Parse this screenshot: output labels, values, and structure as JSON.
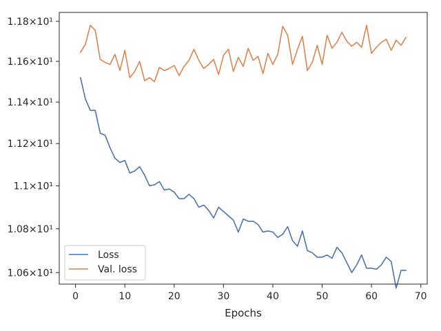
{
  "chart_data": {
    "type": "line",
    "xlabel": "Epochs",
    "ylabel": "",
    "yscale": "log",
    "xlim": [
      -3.3,
      71.3
    ],
    "ylim": [
      10.548,
      11.845
    ],
    "xticks": [
      0,
      10,
      20,
      30,
      40,
      50,
      60,
      70
    ],
    "xtick_labels": [
      "0",
      "10",
      "20",
      "30",
      "40",
      "50",
      "60",
      "70"
    ],
    "yticks": [
      10.6,
      10.8,
      11.0,
      11.2,
      11.4,
      11.6,
      11.8
    ],
    "ytick_labels": [
      "1.06×10¹",
      "1.08×10¹",
      "1.1×10¹",
      "1.12×10¹",
      "1.14×10¹",
      "1.16×10¹",
      "1.18×10¹"
    ],
    "grid": false,
    "legend_position": "lower-left",
    "x": [
      1,
      2,
      3,
      4,
      5,
      6,
      7,
      8,
      9,
      10,
      11,
      12,
      13,
      14,
      15,
      16,
      17,
      18,
      19,
      20,
      21,
      22,
      23,
      24,
      25,
      26,
      27,
      28,
      29,
      30,
      31,
      32,
      33,
      34,
      35,
      36,
      37,
      38,
      39,
      40,
      41,
      42,
      43,
      44,
      45,
      46,
      47,
      48,
      49,
      50,
      51,
      52,
      53,
      54,
      55,
      56,
      57,
      58,
      59,
      60,
      61,
      62,
      63,
      64,
      65,
      66,
      67
    ],
    "series": [
      {
        "name": "Loss",
        "color": "#4c72b0",
        "values": [
          11.52,
          11.415,
          11.36,
          11.36,
          11.25,
          11.24,
          11.18,
          11.13,
          11.11,
          11.12,
          11.06,
          11.07,
          11.09,
          11.05,
          11.0,
          11.005,
          11.02,
          10.98,
          10.985,
          10.97,
          10.94,
          10.94,
          10.96,
          10.94,
          10.9,
          10.91,
          10.885,
          10.85,
          10.9,
          10.88,
          10.86,
          10.84,
          10.785,
          10.845,
          10.835,
          10.835,
          10.82,
          10.785,
          10.79,
          10.785,
          10.76,
          10.775,
          10.81,
          10.745,
          10.72,
          10.79,
          10.7,
          10.69,
          10.67,
          10.67,
          10.68,
          10.665,
          10.715,
          10.69,
          10.645,
          10.6,
          10.635,
          10.68,
          10.62,
          10.62,
          10.615,
          10.635,
          10.67,
          10.65,
          10.53,
          10.61,
          10.61
        ]
      },
      {
        "name": "Val. loss",
        "color": "#dd8452",
        "values": [
          11.645,
          11.685,
          11.78,
          11.755,
          11.61,
          11.595,
          11.585,
          11.635,
          11.555,
          11.655,
          11.52,
          11.55,
          11.6,
          11.505,
          11.52,
          11.5,
          11.57,
          11.555,
          11.565,
          11.58,
          11.53,
          11.575,
          11.605,
          11.66,
          11.605,
          11.565,
          11.585,
          11.61,
          11.535,
          11.63,
          11.66,
          11.55,
          11.62,
          11.575,
          11.665,
          11.605,
          11.625,
          11.54,
          11.64,
          11.585,
          11.635,
          11.775,
          11.73,
          11.585,
          11.66,
          11.725,
          11.555,
          11.595,
          11.68,
          11.585,
          11.73,
          11.665,
          11.695,
          11.745,
          11.7,
          11.675,
          11.695,
          11.67,
          11.78,
          11.64,
          11.67,
          11.695,
          11.71,
          11.655,
          11.705,
          11.68,
          11.72
        ]
      }
    ]
  }
}
